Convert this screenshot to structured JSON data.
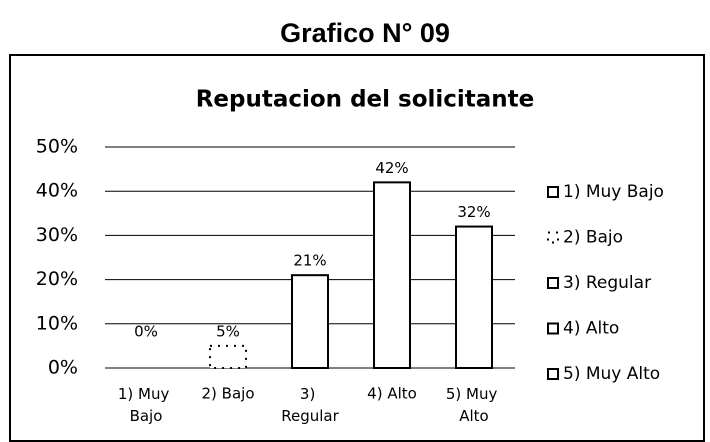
{
  "chart_data": {
    "type": "bar",
    "page_title": "Grafico N° 09",
    "title": "Reputacion del solicitante",
    "categories": [
      "1) Muy Bajo",
      "2) Bajo",
      "3) Regular",
      "4) Alto",
      "5) Muy Alto"
    ],
    "values": [
      0,
      5,
      21,
      42,
      32
    ],
    "value_labels": [
      "0%",
      "5%",
      "21%",
      "42%",
      "32%"
    ],
    "color": "#ffffff",
    "bar_borders": [
      "solid",
      "dotted",
      "solid",
      "solid",
      "solid"
    ],
    "ylim": [
      0,
      50
    ],
    "yticks": [
      {
        "value": 0,
        "label": "0%"
      },
      {
        "value": 10,
        "label": "10%"
      },
      {
        "value": 20,
        "label": "20%"
      },
      {
        "value": 30,
        "label": "30%"
      },
      {
        "value": 40,
        "label": "40%"
      },
      {
        "value": 50,
        "label": "50%"
      }
    ],
    "grid": true,
    "legend": "right"
  }
}
